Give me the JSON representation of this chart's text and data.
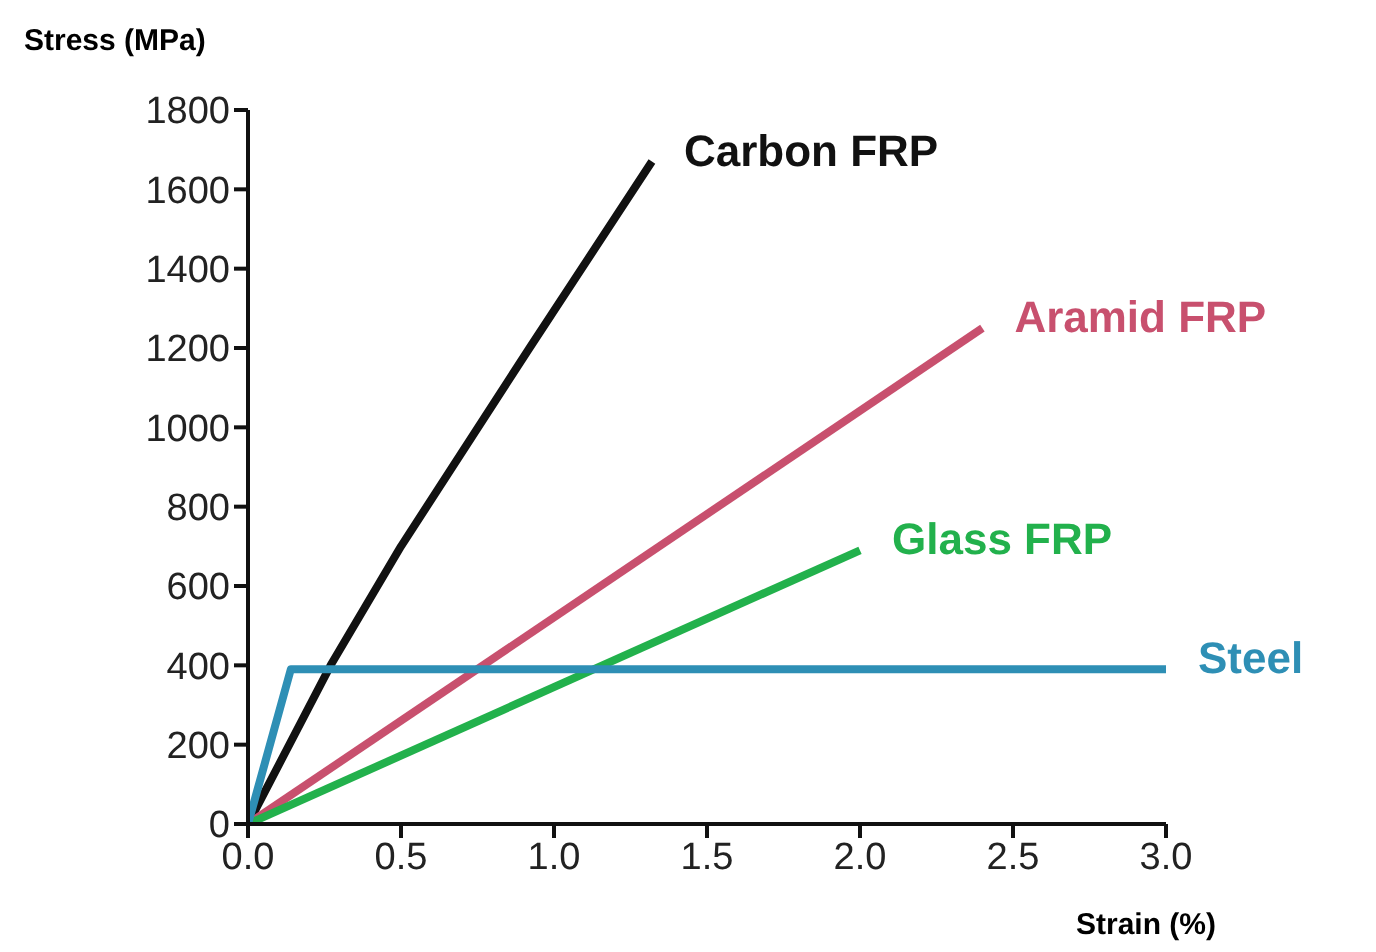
{
  "chart_data": {
    "type": "line",
    "xlabel": "Strain (%)",
    "ylabel": "Stress (MPa)",
    "xlim": [
      0,
      3
    ],
    "xticks": [
      {
        "value": 0,
        "label": "0.0"
      },
      {
        "value": 0.5,
        "label": "0.5"
      },
      {
        "value": 1,
        "label": "1.0"
      },
      {
        "value": 1.5,
        "label": "1.5"
      },
      {
        "value": 2,
        "label": "2.0"
      },
      {
        "value": 2.5,
        "label": "2.5"
      },
      {
        "value": 3,
        "label": "3.0"
      }
    ],
    "ylim": [
      0,
      1800
    ],
    "yticks": [
      0,
      200,
      400,
      600,
      800,
      1000,
      1200,
      1400,
      1600,
      1800
    ],
    "grid": false,
    "legend": false,
    "marker": "none",
    "line_style": "solid",
    "series": [
      {
        "name": "Carbon FRP",
        "color": "#111111",
        "x": [
          0,
          0.27,
          0.5,
          0.92,
          1.32
        ],
        "values": [
          0,
          400,
          700,
          1200,
          1670
        ]
      },
      {
        "name": "Aramid FRP",
        "color": "#c8506e",
        "x": [
          0,
          2.4
        ],
        "values": [
          0,
          1250
        ]
      },
      {
        "name": "Glass FRP",
        "color": "#22b14c",
        "x": [
          0,
          2.0
        ],
        "values": [
          0,
          690
        ]
      },
      {
        "name": "Steel",
        "color": "#2e8fb5",
        "x": [
          0,
          0.14,
          3.0
        ],
        "values": [
          0,
          390,
          390
        ]
      }
    ]
  }
}
